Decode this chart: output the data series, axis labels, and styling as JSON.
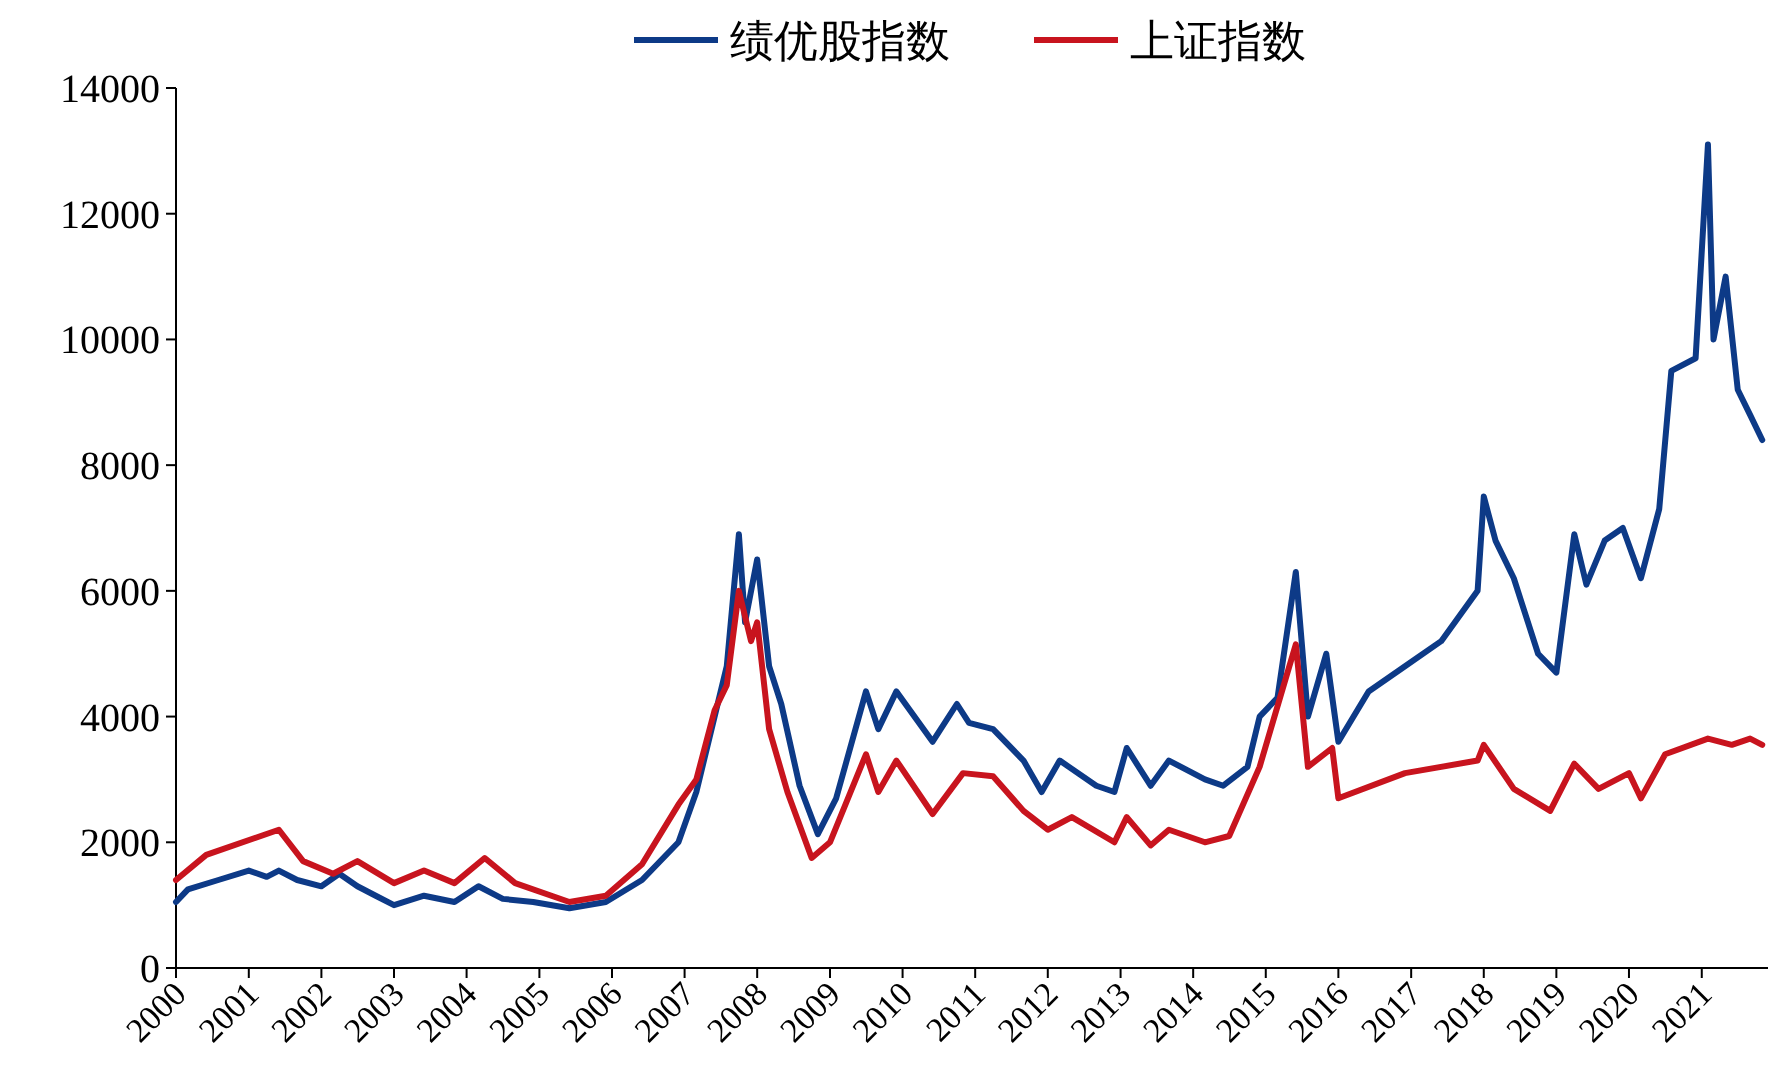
{
  "chart_data": {
    "type": "line",
    "legend": "top",
    "grid": false,
    "marker": "none",
    "line_style": "solid",
    "xlim": [
      "2000-01-01",
      "2021-11-30"
    ],
    "xticks": [
      {
        "value": "2000-01-01",
        "label": "2000"
      },
      {
        "value": "2001-01-01",
        "label": "2001"
      },
      {
        "value": "2002-01-01",
        "label": "2002"
      },
      {
        "value": "2003-01-01",
        "label": "2003"
      },
      {
        "value": "2004-01-01",
        "label": "2004"
      },
      {
        "value": "2005-01-01",
        "label": "2005"
      },
      {
        "value": "2006-01-01",
        "label": "2006"
      },
      {
        "value": "2007-01-01",
        "label": "2007"
      },
      {
        "value": "2008-01-01",
        "label": "2008"
      },
      {
        "value": "2009-01-01",
        "label": "2009"
      },
      {
        "value": "2010-01-01",
        "label": "2010"
      },
      {
        "value": "2011-01-01",
        "label": "2011"
      },
      {
        "value": "2012-01-01",
        "label": "2012"
      },
      {
        "value": "2013-01-01",
        "label": "2013"
      },
      {
        "value": "2014-01-01",
        "label": "2014"
      },
      {
        "value": "2015-01-01",
        "label": "2015"
      },
      {
        "value": "2016-01-01",
        "label": "2016"
      },
      {
        "value": "2017-01-01",
        "label": "2017"
      },
      {
        "value": "2018-01-01",
        "label": "2018"
      },
      {
        "value": "2019-01-01",
        "label": "2019"
      },
      {
        "value": "2020-01-01",
        "label": "2020"
      },
      {
        "value": "2021-01-01",
        "label": "2021"
      }
    ],
    "ylim": [
      0,
      14000
    ],
    "yticks": [
      0,
      2000,
      4000,
      6000,
      8000,
      10000,
      12000,
      14000
    ],
    "series": [
      {
        "name": "绩优股指数",
        "color": "#0d3a87",
        "x": [
          "2000-01",
          "2000-03",
          "2000-08",
          "2001-01",
          "2001-04",
          "2001-06",
          "2001-09",
          "2002-01",
          "2002-04",
          "2002-07",
          "2002-10",
          "2003-01",
          "2003-06",
          "2003-11",
          "2004-03",
          "2004-07",
          "2004-12",
          "2005-06",
          "2005-12",
          "2006-06",
          "2006-12",
          "2007-03",
          "2007-06",
          "2007-08",
          "2007-10",
          "2007-11",
          "2008-01",
          "2008-03",
          "2008-05",
          "2008-08",
          "2008-11",
          "2009-02",
          "2009-07",
          "2009-09",
          "2009-12",
          "2010-06",
          "2010-10",
          "2010-12",
          "2011-04",
          "2011-09",
          "2011-12",
          "2012-03",
          "2012-09",
          "2012-12",
          "2013-02",
          "2013-06",
          "2013-09",
          "2014-03",
          "2014-06",
          "2014-10",
          "2014-12",
          "2015-03",
          "2015-06",
          "2015-08",
          "2015-11",
          "2016-01",
          "2016-06",
          "2016-12",
          "2017-06",
          "2017-12",
          "2018-01",
          "2018-03",
          "2018-06",
          "2018-10",
          "2019-01",
          "2019-04",
          "2019-06",
          "2019-09",
          "2019-12",
          "2020-03",
          "2020-06",
          "2020-08",
          "2020-12",
          "2021-02",
          "2021-03",
          "2021-05",
          "2021-07",
          "2021-09",
          "2021-11"
        ],
        "values": [
          1050,
          1250,
          1400,
          1550,
          1450,
          1550,
          1400,
          1300,
          1500,
          1300,
          1150,
          1000,
          1150,
          1050,
          1300,
          1100,
          1050,
          950,
          1050,
          1400,
          2000,
          2800,
          4000,
          4800,
          6900,
          5500,
          6500,
          4800,
          4200,
          2900,
          2130,
          2700,
          4400,
          3800,
          4400,
          3600,
          4200,
          3900,
          3800,
          3300,
          2800,
          3300,
          2900,
          2800,
          3500,
          2900,
          3300,
          3000,
          2900,
          3200,
          4000,
          4300,
          6300,
          4000,
          5000,
          3600,
          4400,
          4800,
          5200,
          6000,
          7500,
          6800,
          6200,
          5000,
          4700,
          6900,
          6100,
          6800,
          7000,
          6200,
          7300,
          9500,
          9700,
          13100,
          10000,
          11000,
          9200,
          8800,
          8400
        ]
      },
      {
        "name": "上证指数",
        "color": "#c8141e",
        "x": [
          "2000-01",
          "2000-06",
          "2001-06",
          "2001-10",
          "2002-03",
          "2002-07",
          "2003-01",
          "2003-06",
          "2003-11",
          "2004-04",
          "2004-09",
          "2005-06",
          "2005-12",
          "2006-06",
          "2006-12",
          "2007-03",
          "2007-06",
          "2007-08",
          "2007-10",
          "2007-12",
          "2008-01",
          "2008-03",
          "2008-06",
          "2008-10",
          "2009-01",
          "2009-07",
          "2009-09",
          "2009-12",
          "2010-06",
          "2010-11",
          "2011-04",
          "2011-09",
          "2012-01",
          "2012-05",
          "2012-12",
          "2013-02",
          "2013-06",
          "2013-09",
          "2014-03",
          "2014-07",
          "2014-12",
          "2015-06",
          "2015-08",
          "2015-12",
          "2016-01",
          "2016-12",
          "2017-12",
          "2018-01",
          "2018-06",
          "2018-12",
          "2019-04",
          "2019-08",
          "2020-01",
          "2020-03",
          "2020-07",
          "2021-02",
          "2021-06",
          "2021-09",
          "2021-11"
        ],
        "values": [
          1400,
          1800,
          2200,
          1700,
          1500,
          1700,
          1350,
          1550,
          1350,
          1750,
          1350,
          1050,
          1150,
          1650,
          2600,
          3000,
          4100,
          4500,
          6000,
          5200,
          5500,
          3800,
          2800,
          1750,
          2000,
          3400,
          2800,
          3300,
          2450,
          3100,
          3050,
          2500,
          2200,
          2400,
          2000,
          2400,
          1950,
          2200,
          2000,
          2100,
          3200,
          5150,
          3200,
          3500,
          2700,
          3100,
          3300,
          3550,
          2850,
          2500,
          3250,
          2850,
          3100,
          2700,
          3400,
          3650,
          3550,
          3650,
          3550
        ]
      }
    ]
  }
}
